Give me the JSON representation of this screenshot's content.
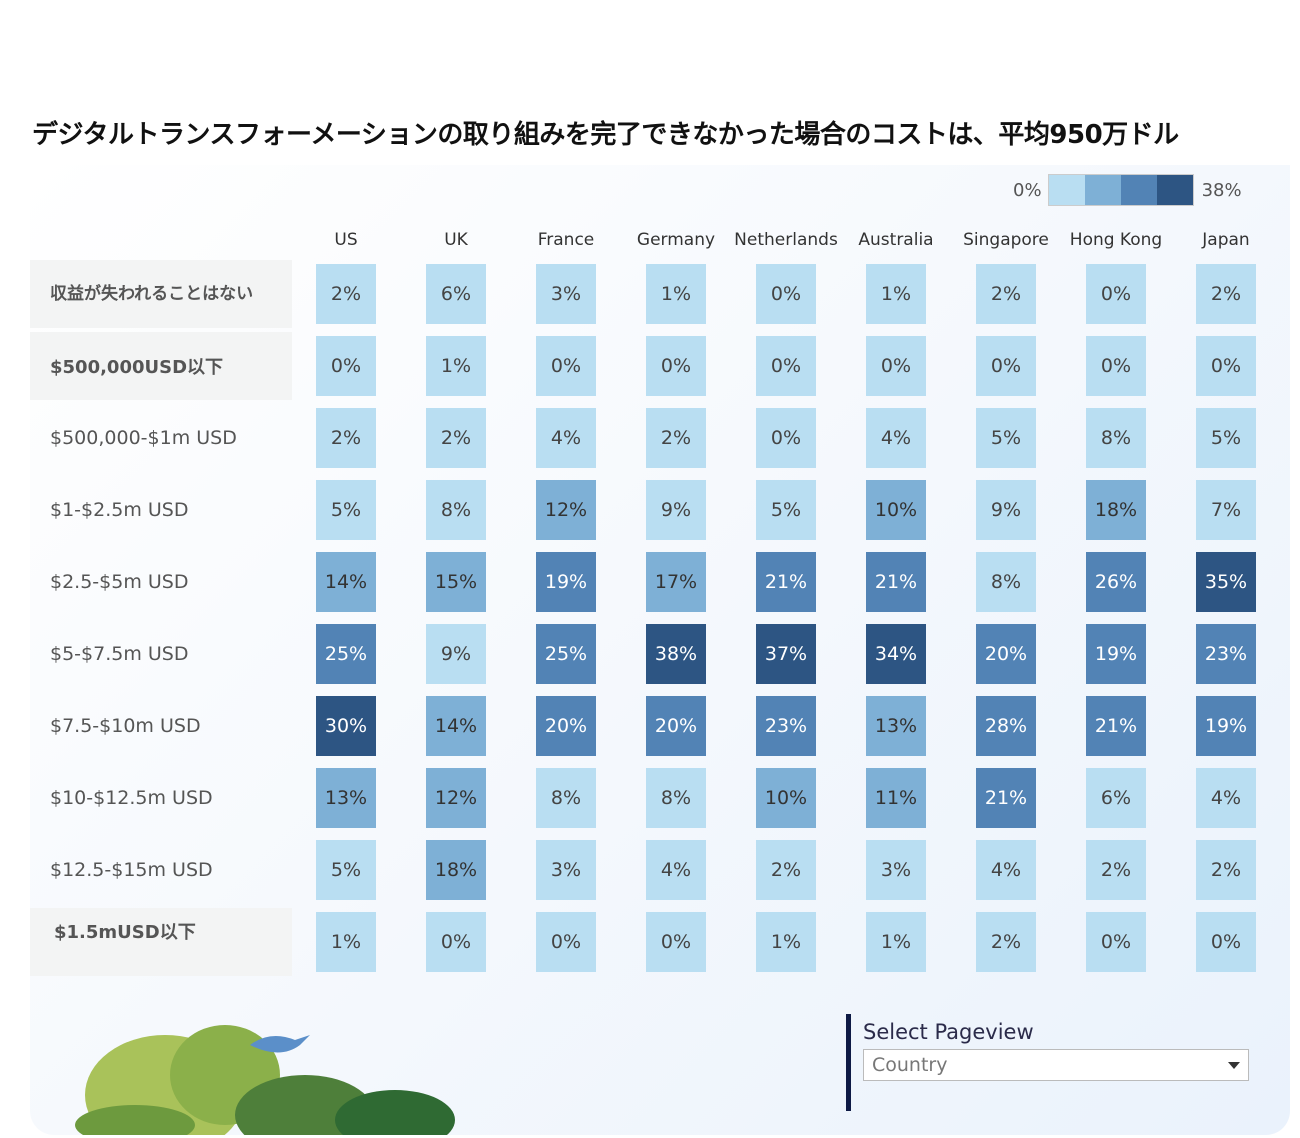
{
  "chart_data": {
    "type": "heatmap",
    "title": "デジタルトランスフォーメーションの取り組みを完了できなかった場合のコストは、平均950万ドル",
    "columns": [
      "US",
      "UK",
      "France",
      "Germany",
      "Netherlands",
      "Australia",
      "Singapore",
      "Hong Kong",
      "Japan"
    ],
    "rows": [
      "収益が失われることはない",
      "$500,000USD以下",
      "$500,000-$1m USD",
      "$1-$2.5m USD",
      "$2.5-$5m USD",
      "$5-$7.5m USD",
      "$7.5-$10m USD",
      "$10-$12.5m USD",
      "$12.5-$15m USD",
      "$1.5mUSD以下"
    ],
    "values": [
      [
        2,
        6,
        3,
        1,
        0,
        1,
        2,
        0,
        2
      ],
      [
        0,
        1,
        0,
        0,
        0,
        0,
        0,
        0,
        0
      ],
      [
        2,
        2,
        4,
        2,
        0,
        4,
        5,
        8,
        5
      ],
      [
        5,
        8,
        12,
        9,
        5,
        10,
        9,
        18,
        7
      ],
      [
        14,
        15,
        19,
        17,
        21,
        21,
        8,
        26,
        35
      ],
      [
        25,
        9,
        25,
        38,
        37,
        34,
        20,
        19,
        23
      ],
      [
        30,
        14,
        20,
        20,
        23,
        13,
        28,
        21,
        19
      ],
      [
        13,
        12,
        8,
        8,
        10,
        11,
        21,
        6,
        4
      ],
      [
        5,
        18,
        3,
        4,
        2,
        3,
        4,
        2,
        2
      ],
      [
        1,
        0,
        0,
        0,
        1,
        1,
        2,
        0,
        0
      ]
    ],
    "unit": "%",
    "legend": {
      "min_label": "0%",
      "max_label": "38%",
      "placement": "top-right",
      "colors": [
        "#b9def2",
        "#7eb0d6",
        "#5283b5",
        "#2d5583"
      ]
    }
  },
  "selector": {
    "label": "Select Pageview",
    "value": "Country"
  }
}
